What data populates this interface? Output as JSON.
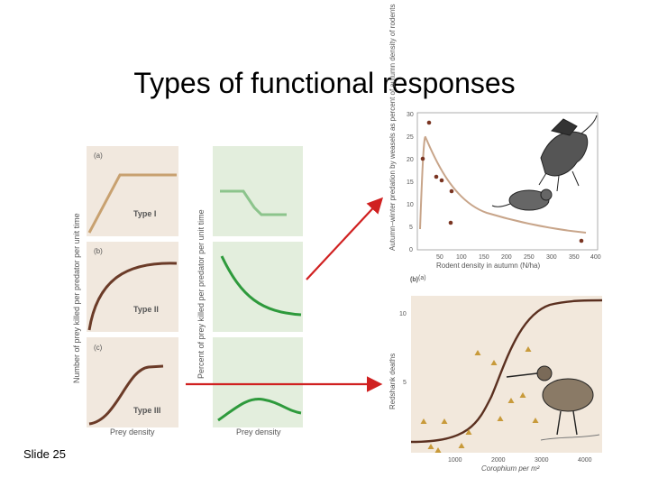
{
  "slide": {
    "title": "Types of functional responses",
    "slide_number": "Slide 25"
  },
  "left_figure": {
    "y_label_left": "Number of prey killed per predator per unit time",
    "y_label_right": "Percent of prey killed per predator per unit time",
    "x_label_left": "Prey density",
    "x_label_right": "Prey density",
    "panels": [
      {
        "letter": "(a)",
        "type_label": "Type I"
      },
      {
        "letter": "(b)",
        "type_label": "Type II"
      },
      {
        "letter": "(c)",
        "type_label": "Type III"
      }
    ]
  },
  "weasel_chart": {
    "ylabel": "Autumn–winter predation by weasels as percent of autumn density of rodents",
    "xlabel": "Rodent density in autumn (N/ha)",
    "panel_letter": "(a)",
    "y_ticks": [
      "0",
      "5",
      "10",
      "15",
      "20",
      "25",
      "30"
    ],
    "x_ticks": [
      "50",
      "100",
      "150",
      "200",
      "250",
      "300",
      "350",
      "400"
    ]
  },
  "redshank_chart": {
    "ylabel": "Redshank deaths",
    "xlabel": "Corophium per m²",
    "panel_letter": "(b)",
    "y_ticks": [
      "5",
      "10"
    ],
    "x_ticks": [
      "1000",
      "2000",
      "3000",
      "4000"
    ]
  }
}
